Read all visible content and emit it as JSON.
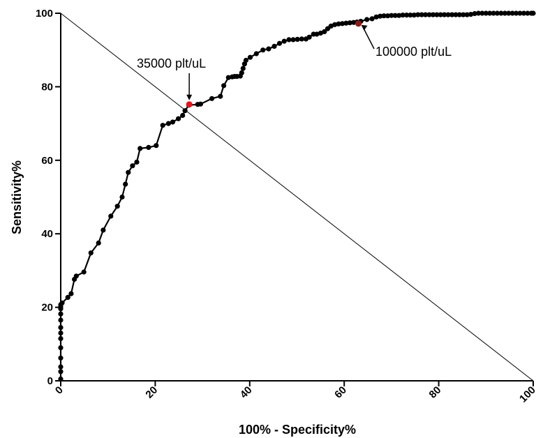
{
  "chart_data": {
    "type": "line",
    "title": "",
    "xlabel": "100% - Specificity%",
    "ylabel": "Sensitivity%",
    "xlim": [
      0,
      100
    ],
    "ylim": [
      0,
      100
    ],
    "x_ticks": [
      "0",
      "20",
      "40",
      "60",
      "80",
      "100"
    ],
    "y_ticks": [
      "0",
      "20",
      "40",
      "60",
      "80",
      "100"
    ],
    "grid": false,
    "legend": "none",
    "reference_line": {
      "from": [
        0,
        100
      ],
      "to": [
        100,
        0
      ]
    },
    "colors": {
      "series": "#000000",
      "highlight": "#e8141b",
      "highlight_dark": "#8b1a1a"
    },
    "series": [
      {
        "x": [
          0,
          0,
          0,
          0,
          0,
          0,
          0,
          0,
          0,
          0,
          0,
          0,
          0,
          0.3,
          1.5,
          2.2,
          2.9,
          3.3,
          4.9,
          6.4,
          8.0,
          9.0,
          10.6,
          12.0,
          13.0,
          13.7,
          14.3,
          15.2,
          16.1,
          16.8,
          18.6,
          20.2,
          21.6,
          22.8,
          23.7,
          24.9,
          25.8,
          26.3,
          27.1,
          29.0,
          29.6,
          32.0,
          33.8,
          34.5,
          35.5,
          36.3,
          36.8,
          37.3,
          38.0,
          38.3,
          38.6,
          38.9,
          39.2,
          40.1,
          41.4,
          42.8,
          44.0,
          45.2,
          46.3,
          47.3,
          48.3,
          49.2,
          50.1,
          51.0,
          51.9,
          52.6,
          53.5,
          54.2,
          55.0,
          55.8,
          56.5,
          57.2,
          58.0,
          58.8,
          59.6,
          60.4,
          61.2,
          62.0,
          62.7,
          63.5,
          64.8,
          65.9,
          66.8,
          67.6,
          68.4,
          69.2,
          70.0,
          70.8,
          71.6,
          72.4,
          73.2,
          74.0,
          74.8,
          75.6,
          76.4,
          77.2,
          78.0,
          78.8,
          79.6,
          80.4,
          81.2,
          82.0,
          82.8,
          83.6,
          84.4,
          85.2,
          86.0,
          86.8,
          87.6,
          88.4,
          89.2,
          90.0,
          90.8,
          91.6,
          92.4,
          93.2,
          94.0,
          94.8,
          95.6,
          96.4,
          97.2,
          98.0,
          98.8,
          99.6,
          100
        ],
        "y": [
          0.5,
          2.5,
          3.8,
          6.2,
          9.0,
          11.5,
          13.0,
          14.5,
          16.5,
          18.2,
          19.6,
          20.2,
          20.7,
          21.2,
          22.7,
          23.7,
          27.6,
          28.5,
          29.6,
          34.8,
          37.5,
          41.0,
          44.8,
          47.5,
          50.0,
          53.5,
          56.7,
          58.5,
          59.5,
          63.2,
          63.5,
          64.0,
          69.5,
          70.0,
          70.4,
          71.3,
          72.2,
          73.5,
          75.0,
          75.2,
          75.3,
          76.8,
          77.4,
          80.3,
          82.5,
          82.7,
          82.8,
          82.8,
          82.9,
          83.8,
          85.0,
          86.2,
          87.2,
          88.0,
          89.0,
          90.0,
          90.3,
          91.0,
          91.8,
          92.4,
          92.8,
          92.8,
          92.9,
          93.0,
          93.0,
          93.5,
          94.3,
          94.3,
          94.6,
          95.0,
          95.8,
          96.5,
          96.9,
          97.1,
          97.2,
          97.3,
          97.4,
          97.5,
          97.6,
          97.8,
          98.3,
          98.5,
          99.0,
          99.2,
          99.3,
          99.3,
          99.4,
          99.4,
          99.4,
          99.5,
          99.5,
          99.5,
          99.5,
          99.6,
          99.6,
          99.6,
          99.6,
          99.6,
          99.6,
          99.6,
          99.6,
          99.6,
          99.6,
          99.6,
          99.6,
          99.6,
          99.6,
          99.7,
          99.9,
          100,
          100,
          100,
          100,
          100,
          100,
          100,
          100,
          100,
          100,
          100,
          100,
          100,
          100,
          100,
          100
        ]
      }
    ],
    "highlights": [
      {
        "label": "35000 plt/uL",
        "x": 27.2,
        "y": 75.2
      },
      {
        "label": "100000 plt/uL",
        "x": 63.0,
        "y": 97.2
      }
    ]
  }
}
